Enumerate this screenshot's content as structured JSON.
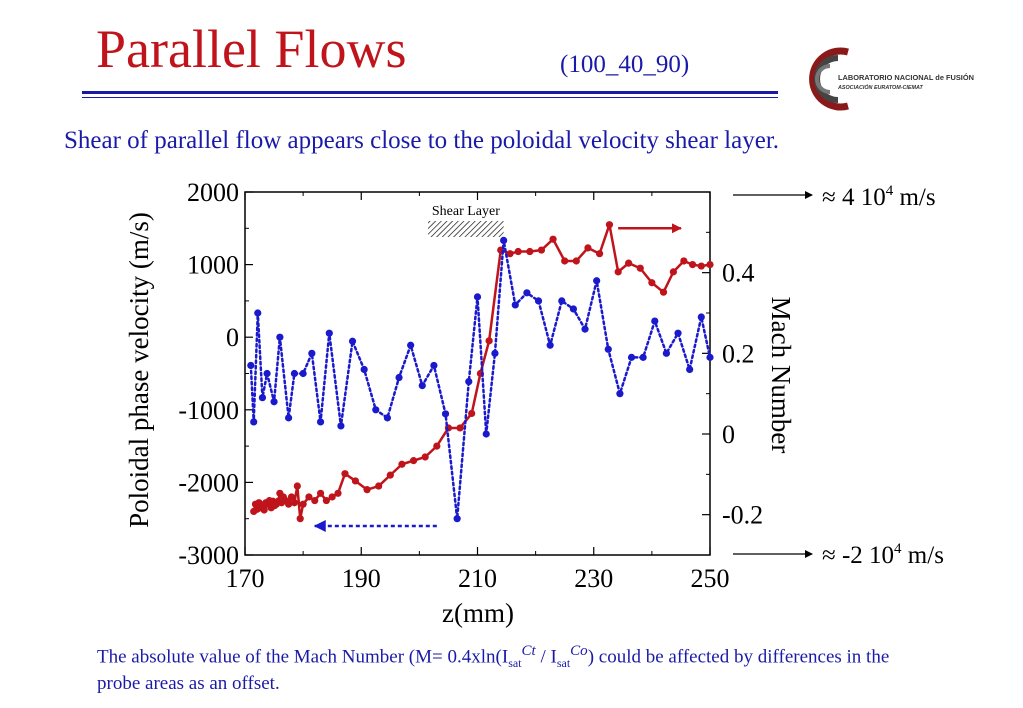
{
  "slide": {
    "title": "Parallel Flows",
    "code": "(100_40_90)",
    "subtitle": "Shear of parallel flow appears close to the poloidal velocity shear layer.",
    "logo": {
      "line1": "LABORATORIO NACIONAL de FUSIÓN",
      "line2": "ASOCIACIÓN EURATOM-CIEMAT"
    },
    "footer": {
      "part1": "The absolute value of the Mach Number (M= 0.4xln(I",
      "sub1": "sat",
      "sup1": "Ct",
      "part2": " / I",
      "sub2": "sat",
      "sup2": "Co",
      "part3": ") could be affected by differences in the probe areas as an offset."
    }
  },
  "chart_data": {
    "type": "line",
    "xlabel": "z(mm)",
    "ylabel": "Poloidal phase velocity (m/s)",
    "y2label": "Mach Number",
    "xlim": [
      170,
      250
    ],
    "ylim": [
      -3000,
      2000
    ],
    "y2lim": [
      -0.3,
      0.6
    ],
    "x_ticks": [
      "170",
      "190",
      "210",
      "230",
      "250"
    ],
    "y_ticks": [
      "-3000",
      "-2000",
      "-1000",
      "0",
      "1000",
      "2000"
    ],
    "y2_ticks": [
      "-0.2",
      "0",
      "0.2",
      "0.4"
    ],
    "top_annotation": "≈ 4 10",
    "top_annotation_exp": "4",
    "top_annotation_unit": " m/s",
    "bottom_annotation": "≈ -2 10",
    "bottom_annotation_exp": "4",
    "bottom_annotation_unit": " m/s",
    "shear_layer_label": "Shear Layer",
    "shear_layer_range": [
      201.5,
      214.5
    ],
    "colors": {
      "red": "#c0141c",
      "blue": "#1a1acc",
      "text_blue": "#1a1aa8"
    },
    "series": [
      {
        "color": "#c0141c",
        "style": "solid",
        "axis": "left",
        "x": [
          171.5,
          171.8,
          172.1,
          172.4,
          172.7,
          173,
          173.3,
          173.6,
          173.9,
          174.2,
          174.5,
          174.8,
          175.1,
          175.4,
          175.7,
          176,
          176.3,
          176.6,
          177,
          177.5,
          178,
          178.5,
          179,
          179.5,
          180,
          181,
          182,
          183,
          184,
          185,
          186,
          187.2,
          189,
          191,
          193,
          195,
          197,
          199,
          201,
          203,
          205,
          207,
          209,
          210.5,
          212,
          214,
          215.6,
          217,
          219,
          221,
          223,
          225,
          227,
          229,
          231,
          232.7,
          234.2,
          236,
          238,
          240,
          242,
          243.7,
          245.5,
          247,
          248.5,
          250
        ],
        "y": [
          -2400,
          -2300,
          -2370,
          -2280,
          -2350,
          -2320,
          -2380,
          -2280,
          -2300,
          -2250,
          -2350,
          -2260,
          -2320,
          -2300,
          -2260,
          -2150,
          -2280,
          -2200,
          -2250,
          -2300,
          -2200,
          -2280,
          -2050,
          -2500,
          -2300,
          -2200,
          -2250,
          -2150,
          -2250,
          -2200,
          -2150,
          -1880,
          -1980,
          -2100,
          -2050,
          -1900,
          -1750,
          -1700,
          -1650,
          -1500,
          -1250,
          -1250,
          -1050,
          -500,
          -50,
          1200,
          1150,
          1180,
          1180,
          1200,
          1350,
          1050,
          1050,
          1230,
          1150,
          1550,
          900,
          1020,
          950,
          750,
          620,
          900,
          1050,
          1000,
          980,
          1000
        ]
      },
      {
        "color": "#1a1acc",
        "style": "dotted",
        "axis": "right",
        "x": [
          171,
          171.5,
          172.2,
          173,
          173.8,
          175,
          176,
          177.5,
          178.5,
          180,
          181.5,
          183,
          184.5,
          186.5,
          188.5,
          190.5,
          192.5,
          194.5,
          196.5,
          198.5,
          200.5,
          202.5,
          204.5,
          206.5,
          208.5,
          210,
          211.5,
          213,
          214.5,
          216.5,
          218.5,
          220.5,
          222.5,
          224.5,
          226.5,
          228.5,
          230.5,
          232.5,
          234.5,
          236.5,
          238.5,
          240.5,
          242.5,
          244.5,
          246.5,
          248.5,
          250
        ],
        "y": [
          0.17,
          0.03,
          0.3,
          0.09,
          0.15,
          0.08,
          0.24,
          0.04,
          0.15,
          0.15,
          0.2,
          0.03,
          0.25,
          0.02,
          0.23,
          0.16,
          0.06,
          0.04,
          0.14,
          0.22,
          0.12,
          0.17,
          0.05,
          -0.21,
          0.13,
          0.34,
          0,
          0.2,
          0.48,
          0.32,
          0.35,
          0.33,
          0.22,
          0.33,
          0.31,
          0.26,
          0.38,
          0.21,
          0.1,
          0.19,
          0.19,
          0.28,
          0.2,
          0.25,
          0.16,
          0.29,
          0.19
        ]
      }
    ],
    "arrows": [
      {
        "color": "#c0141c",
        "style": "solid",
        "axis": "left",
        "from": [
          234.2,
          1500
        ],
        "to": [
          245,
          1500
        ]
      },
      {
        "color": "#1a1acc",
        "style": "dashed",
        "axis": "left",
        "from": [
          203,
          -2600
        ],
        "to": [
          182,
          -2600
        ]
      }
    ]
  }
}
